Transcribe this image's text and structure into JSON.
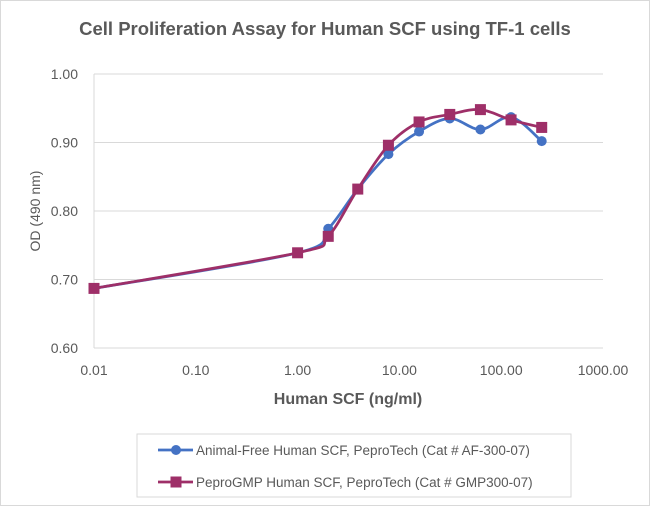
{
  "chart_data": {
    "type": "line",
    "title": "Cell Proliferation Assay for Human SCF using TF-1 cells",
    "xlabel": "Human SCF (ng/ml)",
    "ylabel": "OD (490 nm)",
    "xscale": "log",
    "xlim": [
      0.01,
      1000
    ],
    "ylim": [
      0.6,
      1.0
    ],
    "x_ticks": [
      0.01,
      0.1,
      1,
      10,
      100,
      1000
    ],
    "x_tick_labels": [
      "0.01",
      "0.10",
      "1.00",
      "10.00",
      "100.00",
      "1000.00"
    ],
    "y_ticks": [
      0.6,
      0.7,
      0.8,
      0.9,
      1.0
    ],
    "y_tick_labels": [
      "0.60",
      "0.70",
      "0.80",
      "0.90",
      "1.00"
    ],
    "grid": "horizontal",
    "legend_position": "bottom",
    "smooth": true,
    "series": [
      {
        "name": "Animal-Free Human SCF, PeproTech (Cat # AF-300-07)",
        "color": "#4472C4",
        "marker": "circle",
        "x": [
          0.01,
          1,
          2,
          3.9,
          7.8,
          15.6,
          31.25,
          62.5,
          125,
          250
        ],
        "values": [
          0.687,
          0.739,
          0.774,
          0.832,
          0.883,
          0.916,
          0.935,
          0.919,
          0.937,
          0.902
        ]
      },
      {
        "name": "PeproGMP Human SCF, PeproTech (Cat # GMP300-07)",
        "color": "#9E2F68",
        "marker": "square",
        "x": [
          0.01,
          1,
          2,
          3.9,
          7.8,
          15.6,
          31.25,
          62.5,
          125,
          250
        ],
        "values": [
          0.687,
          0.739,
          0.763,
          0.832,
          0.896,
          0.93,
          0.941,
          0.948,
          0.933,
          0.922
        ]
      }
    ]
  }
}
